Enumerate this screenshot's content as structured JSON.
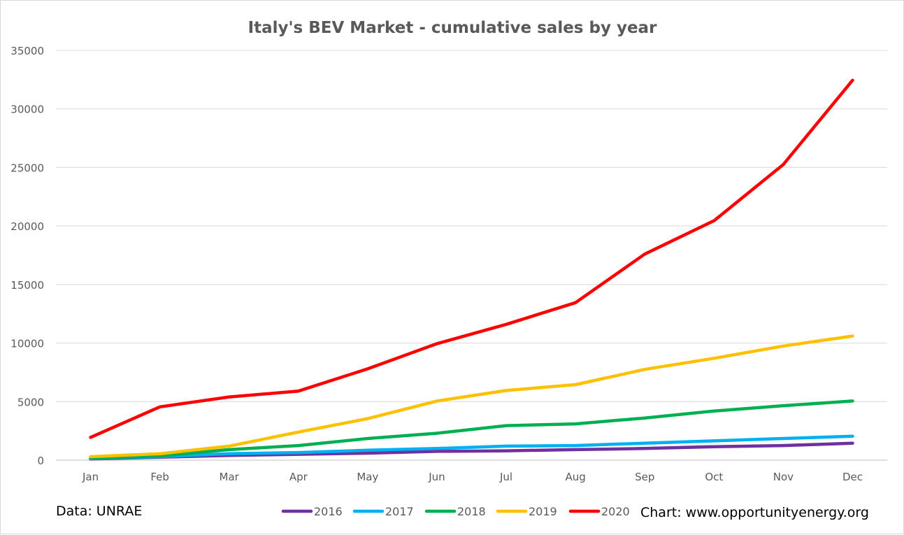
{
  "chart_data": {
    "type": "line",
    "title": "Italy's BEV Market - cumulative sales by year",
    "xlabel": "",
    "ylabel": "",
    "categories": [
      "Jan",
      "Feb",
      "Mar",
      "Apr",
      "May",
      "Jun",
      "Jul",
      "Aug",
      "Sep",
      "Oct",
      "Nov",
      "Dec"
    ],
    "ylim": [
      0,
      35000
    ],
    "yticks": [
      "0",
      "5000",
      "10000",
      "15000",
      "20000",
      "25000",
      "30000",
      "35000"
    ],
    "grid": true,
    "legend_position": "bottom",
    "series": [
      {
        "name": "2016",
        "color": "#7030a0",
        "values": [
          100,
          250,
          400,
          500,
          600,
          750,
          800,
          900,
          1000,
          1150,
          1250,
          1450
        ]
      },
      {
        "name": "2017",
        "color": "#00b0f0",
        "values": [
          150,
          300,
          550,
          650,
          850,
          1000,
          1200,
          1250,
          1450,
          1650,
          1850,
          2050
        ]
      },
      {
        "name": "2018",
        "color": "#00b050",
        "values": [
          200,
          350,
          900,
          1250,
          1850,
          2300,
          2950,
          3100,
          3600,
          4200,
          4650,
          5050
        ]
      },
      {
        "name": "2019",
        "color": "#ffc000",
        "values": [
          300,
          550,
          1200,
          2400,
          3550,
          5050,
          5950,
          6450,
          7750,
          8700,
          9750,
          10600
        ]
      },
      {
        "name": "2020",
        "color": "#ff0000",
        "values": [
          1950,
          4550,
          5400,
          5900,
          7800,
          9950,
          11600,
          13450,
          17600,
          20450,
          25250,
          32450
        ]
      }
    ]
  },
  "footer": {
    "source": "Data: UNRAE",
    "credit": "Chart: www.opportunityenergy.org"
  }
}
